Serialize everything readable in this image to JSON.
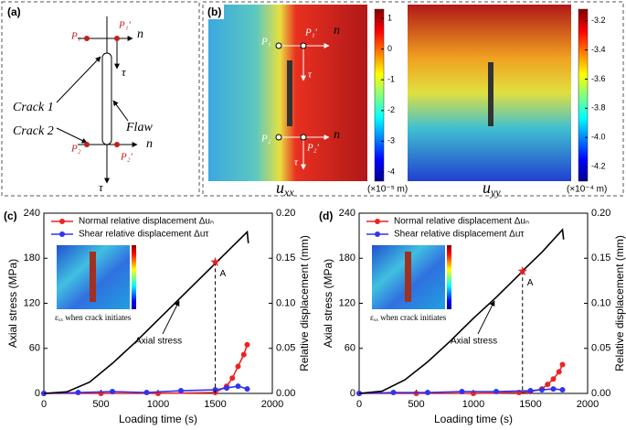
{
  "panel_a": {
    "label": "(a)",
    "p1": "P₁",
    "p1p": "P₁′",
    "p2": "P₂",
    "p2p": "P₂′",
    "n1": "n",
    "n2": "n",
    "tau1": "τ",
    "tau2": "τ",
    "crack1": "Crack 1",
    "crack2": "Crack 2",
    "flaw": "Flaw"
  },
  "panel_b": {
    "label": "(b)",
    "p1": "P₁",
    "p1p": "P₁′",
    "p2": "P₂",
    "p2p": "P₂′",
    "n1": "n",
    "n2": "n",
    "tau1": "τ",
    "tau2": "τ",
    "maps": [
      {
        "symbol": "u",
        "subscript": "xx",
        "unit": "(×10⁻⁵ m)",
        "lim": [
          -4.3,
          1.3
        ],
        "ticks": [
          1,
          0,
          -1,
          -2,
          -3,
          -4
        ]
      },
      {
        "symbol": "u",
        "subscript": "yy",
        "unit": "(×10⁻⁴ m)",
        "lim": [
          -4.3,
          -3.12
        ],
        "ticks": [
          -3.2,
          -3.4,
          -3.6,
          -3.8,
          {
            "value": -4,
            "label": "-4.0"
          },
          -4.2
        ]
      }
    ]
  },
  "chart_data": [
    {
      "type": "line",
      "panel_label": "(c)",
      "xlabel": "Loading time (s)",
      "ylabel": "Axial stress (MPa)",
      "y2label": "Relative displacement (mm)",
      "xlim": [
        0,
        2000
      ],
      "xticks": [
        0,
        500,
        1000,
        1500,
        2000
      ],
      "ylim": [
        0,
        240
      ],
      "yticks": [
        0,
        60,
        120,
        180,
        240
      ],
      "y2lim": [
        0,
        0.2
      ],
      "y2ticks": [
        {
          "value": 0,
          "label": "0.00"
        },
        {
          "value": 0.05,
          "label": "0.05"
        },
        {
          "value": 0.1,
          "label": "0.10"
        },
        {
          "value": 0.15,
          "label": "0.15"
        },
        {
          "value": 0.2,
          "label": "0.20"
        }
      ],
      "series": [
        {
          "name": "Normal relative displacement Δuₙ",
          "color": "#ee2222",
          "axis": "y2",
          "markers": true,
          "x": [
            0,
            500,
            1000,
            1500,
            1600,
            1650,
            1700,
            1750,
            1780
          ],
          "values": [
            0,
            0,
            0,
            0.001,
            0.008,
            0.017,
            0.03,
            0.043,
            0.054
          ]
        },
        {
          "name": "Shear relative displacement Δuτ",
          "color": "#3333ee",
          "axis": "y2",
          "markers": true,
          "x": [
            0,
            300,
            600,
            900,
            1200,
            1500,
            1600,
            1700,
            1780
          ],
          "values": [
            0,
            0.001,
            0.002,
            0.001,
            0.003,
            0.004,
            0.006,
            0.008,
            0.005
          ]
        },
        {
          "name": "Axial stress",
          "color": "#000000",
          "legend": false,
          "x": [
            0,
            200,
            400,
            600,
            800,
            1000,
            1200,
            1400,
            1500,
            1600,
            1780,
            1790
          ],
          "values": [
            0,
            2,
            15,
            40,
            68,
            98,
            128,
            158,
            173,
            188,
            215,
            200
          ]
        }
      ],
      "point": {
        "label": "A",
        "x": 1500,
        "y": 175
      },
      "inset_caption": "εₓₓ when crack initiates"
    },
    {
      "type": "line",
      "panel_label": "(d)",
      "xlabel": "Loading time (s)",
      "ylabel": "Axial stress (MPa)",
      "y2label": "Relative displacement (mm)",
      "xlim": [
        0,
        2000
      ],
      "xticks": [
        0,
        500,
        1000,
        1500,
        2000
      ],
      "ylim": [
        0,
        240
      ],
      "yticks": [
        0,
        60,
        120,
        180,
        240
      ],
      "y2lim": [
        0,
        0.2
      ],
      "y2ticks": [
        {
          "value": 0,
          "label": "0.00"
        },
        {
          "value": 0.05,
          "label": "0.05"
        },
        {
          "value": 0.1,
          "label": "0.10"
        },
        {
          "value": 0.15,
          "label": "0.15"
        },
        {
          "value": 0.2,
          "label": "0.20"
        }
      ],
      "series": [
        {
          "name": "Normal relative displacement Δuₙ",
          "color": "#ee2222",
          "axis": "y2",
          "markers": true,
          "x": [
            0,
            500,
            1000,
            1400,
            1500,
            1600,
            1650,
            1700,
            1750,
            1780
          ],
          "values": [
            0,
            0,
            0,
            0.001,
            0.002,
            0.005,
            0.01,
            0.016,
            0.024,
            0.032
          ]
        },
        {
          "name": "Shear relative displacement Δuτ",
          "color": "#3333ee",
          "axis": "y2",
          "markers": true,
          "x": [
            0,
            300,
            600,
            900,
            1200,
            1500,
            1600,
            1700,
            1780
          ],
          "values": [
            0,
            0.001,
            0.001,
            0.002,
            0.002,
            0.003,
            0.004,
            0.005,
            0.004
          ]
        },
        {
          "name": "Axial stress",
          "color": "#000000",
          "legend": false,
          "x": [
            0,
            200,
            400,
            600,
            800,
            1000,
            1200,
            1400,
            1430,
            1600,
            1780,
            1790
          ],
          "values": [
            0,
            3,
            18,
            42,
            70,
            100,
            128,
            158,
            163,
            188,
            218,
            205
          ]
        }
      ],
      "point": {
        "label": "A",
        "x": 1430,
        "y": 163
      },
      "inset_caption": "εₓₓ when crack initiates"
    }
  ]
}
